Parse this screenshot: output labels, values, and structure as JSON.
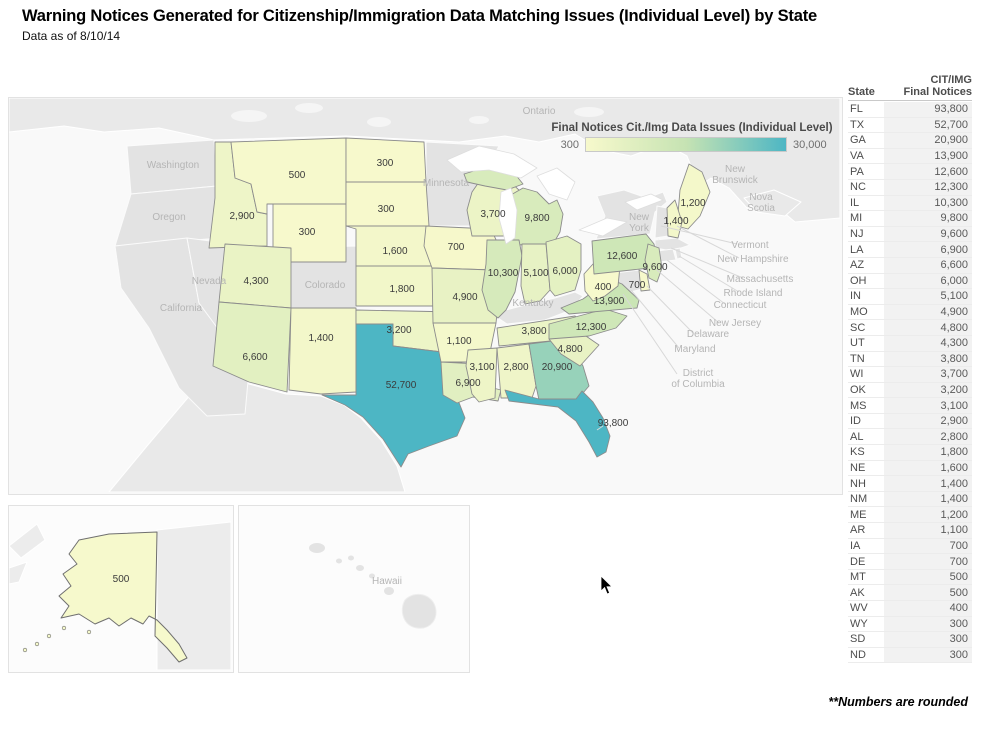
{
  "header": {
    "title": "Warning Notices Generated for Citizenship/Immigration Data Matching Issues (Individual Level) by State",
    "subtitle": "Data as of 8/10/14"
  },
  "legend": {
    "title": "Final Notices Cit./Img Data Issues (Individual Level)",
    "min": 300,
    "max": 30000,
    "min_label": "300",
    "max_label": "30,000",
    "colors": [
      "#f7f9cc",
      "#c6e3b3",
      "#4db6c4"
    ],
    "no_data_color": "#e3e3e3"
  },
  "table": {
    "state_header": "State",
    "value_header_line1": "CIT/IMG",
    "value_header_line2": "Final Notices"
  },
  "states": [
    {
      "abbr": "FL",
      "value": 93800,
      "label": "93,800"
    },
    {
      "abbr": "TX",
      "value": 52700,
      "label": "52,700"
    },
    {
      "abbr": "GA",
      "value": 20900,
      "label": "20,900"
    },
    {
      "abbr": "VA",
      "value": 13900,
      "label": "13,900"
    },
    {
      "abbr": "PA",
      "value": 12600,
      "label": "12,600"
    },
    {
      "abbr": "NC",
      "value": 12300,
      "label": "12,300"
    },
    {
      "abbr": "IL",
      "value": 10300,
      "label": "10,300"
    },
    {
      "abbr": "MI",
      "value": 9800,
      "label": "9,800"
    },
    {
      "abbr": "NJ",
      "value": 9600,
      "label": "9,600"
    },
    {
      "abbr": "LA",
      "value": 6900,
      "label": "6,900"
    },
    {
      "abbr": "AZ",
      "value": 6600,
      "label": "6,600"
    },
    {
      "abbr": "OH",
      "value": 6000,
      "label": "6,000"
    },
    {
      "abbr": "IN",
      "value": 5100,
      "label": "5,100"
    },
    {
      "abbr": "MO",
      "value": 4900,
      "label": "4,900"
    },
    {
      "abbr": "SC",
      "value": 4800,
      "label": "4,800"
    },
    {
      "abbr": "UT",
      "value": 4300,
      "label": "4,300"
    },
    {
      "abbr": "TN",
      "value": 3800,
      "label": "3,800"
    },
    {
      "abbr": "WI",
      "value": 3700,
      "label": "3,700"
    },
    {
      "abbr": "OK",
      "value": 3200,
      "label": "3,200"
    },
    {
      "abbr": "MS",
      "value": 3100,
      "label": "3,100"
    },
    {
      "abbr": "ID",
      "value": 2900,
      "label": "2,900"
    },
    {
      "abbr": "AL",
      "value": 2800,
      "label": "2,800"
    },
    {
      "abbr": "KS",
      "value": 1800,
      "label": "1,800"
    },
    {
      "abbr": "NE",
      "value": 1600,
      "label": "1,600"
    },
    {
      "abbr": "NH",
      "value": 1400,
      "label": "1,400"
    },
    {
      "abbr": "NM",
      "value": 1400,
      "label": "1,400"
    },
    {
      "abbr": "ME",
      "value": 1200,
      "label": "1,200"
    },
    {
      "abbr": "AR",
      "value": 1100,
      "label": "1,100"
    },
    {
      "abbr": "IA",
      "value": 700,
      "label": "700"
    },
    {
      "abbr": "DE",
      "value": 700,
      "label": "700"
    },
    {
      "abbr": "MT",
      "value": 500,
      "label": "500"
    },
    {
      "abbr": "AK",
      "value": 500,
      "label": "500"
    },
    {
      "abbr": "WV",
      "value": 400,
      "label": "400"
    },
    {
      "abbr": "WY",
      "value": 300,
      "label": "300"
    },
    {
      "abbr": "SD",
      "value": 300,
      "label": "300"
    },
    {
      "abbr": "ND",
      "value": 300,
      "label": "300"
    }
  ],
  "map": {
    "basemap_labels": [
      "Ontario",
      "Washington",
      "Oregon",
      "Nevada",
      "California",
      "Minnesota",
      "Colorado",
      "Kentucky",
      "New\nYork",
      "New\nBrunswick",
      "Nova\nScotia",
      "Vermont",
      "New Hampshire",
      "Massachusetts",
      "Rhode Island",
      "Connecticut",
      "New Jersey",
      "Delaware",
      "Maryland",
      "District\nof Columbia"
    ]
  },
  "insets": {
    "hawaii_label": "Hawaii"
  },
  "footnote": "**Numbers are rounded",
  "chart_data": {
    "type": "heatmap",
    "subtype": "us_choropleth_map",
    "title": "Warning Notices Generated for Citizenship/Immigration Data Matching Issues (Individual Level) by State",
    "subtitle": "Data as of 8/10/14",
    "legend_title": "Final Notices Cit./Img Data Issues (Individual Level)",
    "color_scale": {
      "min": 300,
      "max": 30000,
      "min_color": "#f7f9cc",
      "max_color": "#4db6c4"
    },
    "categories": [
      "FL",
      "TX",
      "GA",
      "VA",
      "PA",
      "NC",
      "IL",
      "MI",
      "NJ",
      "LA",
      "AZ",
      "OH",
      "IN",
      "MO",
      "SC",
      "UT",
      "TN",
      "WI",
      "OK",
      "MS",
      "ID",
      "AL",
      "KS",
      "NE",
      "NH",
      "NM",
      "ME",
      "AR",
      "IA",
      "DE",
      "MT",
      "AK",
      "WV",
      "WY",
      "SD",
      "ND"
    ],
    "values": [
      93800,
      52700,
      20900,
      13900,
      12600,
      12300,
      10300,
      9800,
      9600,
      6900,
      6600,
      6000,
      5100,
      4900,
      4800,
      4300,
      3800,
      3700,
      3200,
      3100,
      2900,
      2800,
      1800,
      1600,
      1400,
      1400,
      1200,
      1100,
      700,
      700,
      500,
      500,
      400,
      300,
      300,
      300
    ],
    "no_data_states": [
      "WA",
      "OR",
      "CA",
      "NV",
      "MN",
      "CO",
      "KY",
      "NY",
      "MD",
      "VT",
      "MA",
      "CT",
      "RI",
      "DC",
      "HI"
    ],
    "footnote": "**Numbers are rounded"
  }
}
